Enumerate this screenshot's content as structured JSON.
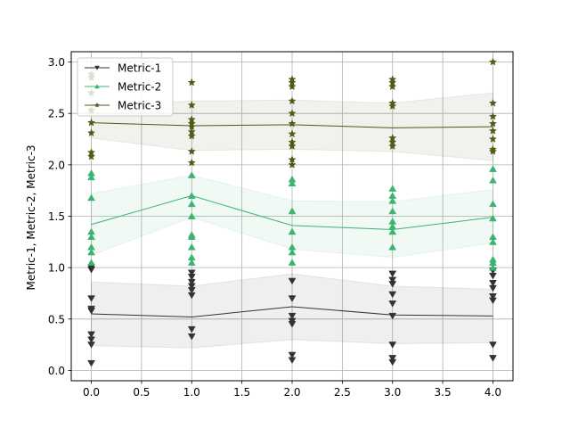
{
  "chart_data": {
    "type": "line",
    "title": "",
    "xlabel": "",
    "ylabel": "Metric-1, Metric-2, Metric-3",
    "xlim": [
      -0.2,
      4.2
    ],
    "ylim": [
      -0.1,
      3.1
    ],
    "xticks": [
      "0.0",
      "0.5",
      "1.0",
      "1.5",
      "2.0",
      "2.5",
      "3.0",
      "3.5",
      "4.0"
    ],
    "yticks": [
      "0.0",
      "0.5",
      "1.0",
      "1.5",
      "2.0",
      "2.5",
      "3.0"
    ],
    "grid": true,
    "legend_position": "top-left",
    "x": [
      0,
      1,
      2,
      3,
      4
    ],
    "series": [
      {
        "name": "Metric-1",
        "color": "#333333",
        "marker": "triangle-down",
        "mean": [
          0.55,
          0.52,
          0.62,
          0.54,
          0.53
        ],
        "band_lower": [
          0.24,
          0.22,
          0.3,
          0.26,
          0.27
        ],
        "band_upper": [
          0.86,
          0.82,
          0.94,
          0.82,
          0.79
        ],
        "points": [
          [
            0.07,
            0.25,
            0.3,
            0.35,
            0.58,
            0.6,
            0.7,
            0.98,
            1.0
          ],
          [
            0.33,
            0.4,
            0.73,
            0.78,
            0.82,
            0.86,
            0.91,
            0.95
          ],
          [
            0.1,
            0.15,
            0.45,
            0.48,
            0.53,
            0.7,
            0.87
          ],
          [
            0.08,
            0.12,
            0.25,
            0.53,
            0.65,
            0.74,
            0.84,
            0.88,
            0.94
          ],
          [
            0.12,
            0.25,
            0.68,
            0.72,
            0.8,
            0.85,
            0.92,
            0.97
          ]
        ]
      },
      {
        "name": "Metric-2",
        "color": "#3cb371",
        "marker": "triangle-up",
        "mean": [
          1.42,
          1.7,
          1.41,
          1.37,
          1.49
        ],
        "band_lower": [
          1.12,
          1.49,
          1.18,
          1.1,
          1.24
        ],
        "band_upper": [
          1.72,
          1.9,
          1.65,
          1.64,
          1.76
        ],
        "points": [
          [
            1.05,
            1.15,
            1.2,
            1.3,
            1.35,
            1.68,
            1.88,
            1.92
          ],
          [
            1.05,
            1.1,
            1.2,
            1.3,
            1.32,
            1.5,
            1.62,
            1.7,
            1.9
          ],
          [
            1.05,
            1.15,
            1.2,
            1.35,
            1.55,
            1.82,
            1.86
          ],
          [
            1.2,
            1.35,
            1.4,
            1.45,
            1.55,
            1.65,
            1.7,
            1.77
          ],
          [
            1.0,
            1.05,
            1.08,
            1.25,
            1.3,
            1.48,
            1.62,
            1.85,
            1.96
          ]
        ]
      },
      {
        "name": "Metric-3",
        "color": "#4b5d16",
        "marker": "star",
        "mean": [
          2.41,
          2.38,
          2.39,
          2.36,
          2.37
        ],
        "band_lower": [
          2.26,
          2.14,
          2.15,
          2.13,
          2.04
        ],
        "band_upper": [
          2.57,
          2.62,
          2.63,
          2.6,
          2.7
        ],
        "points": [
          [
            2.08,
            2.12,
            2.31,
            2.41,
            2.53,
            2.7,
            2.85,
            2.88
          ],
          [
            2.02,
            2.13,
            2.28,
            2.32,
            2.37,
            2.4,
            2.44,
            2.58,
            2.8
          ],
          [
            2.0,
            2.05,
            2.18,
            2.22,
            2.3,
            2.4,
            2.5,
            2.62,
            2.76,
            2.8,
            2.83
          ],
          [
            2.18,
            2.22,
            2.26,
            2.57,
            2.6,
            2.76,
            2.8,
            2.83
          ],
          [
            2.13,
            2.15,
            2.25,
            2.33,
            2.4,
            2.47,
            2.6,
            3.0
          ]
        ]
      }
    ]
  }
}
